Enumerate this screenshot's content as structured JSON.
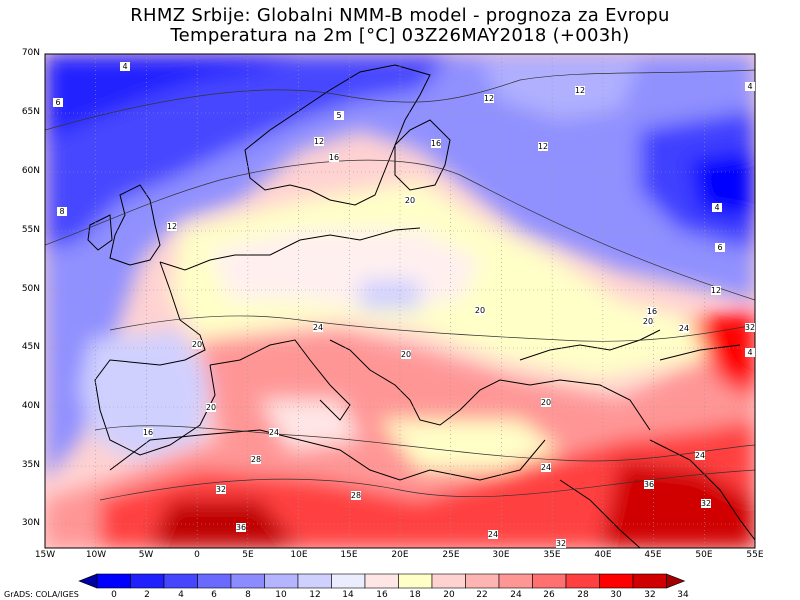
{
  "title_line1": "RHMZ Srbije: Globalni NMM-B model - prognoza za Evropu",
  "title_line2": "Temperatura na 2m [°C] 03Z26MAY2018 (+003h)",
  "lat_labels": [
    "70N",
    "65N",
    "60N",
    "55N",
    "50N",
    "45N",
    "40N",
    "35N",
    "30N"
  ],
  "lon_labels": [
    "15W",
    "10W",
    "5W",
    "0",
    "5E",
    "10E",
    "15E",
    "20E",
    "25E",
    "30E",
    "35E",
    "40E",
    "45E",
    "50E",
    "55E"
  ],
  "credit": "GrADS: COLA/IGES",
  "colorbar": {
    "labels": [
      "0",
      "2",
      "4",
      "6",
      "8",
      "10",
      "12",
      "14",
      "16",
      "18",
      "20",
      "22",
      "24",
      "26",
      "28",
      "30",
      "32",
      "34"
    ],
    "colors": [
      "#0000a0",
      "#0000ff",
      "#2020ff",
      "#4646ff",
      "#6a6aff",
      "#8c8cff",
      "#b4b4ff",
      "#d0d0ff",
      "#ececff",
      "#ffe6e6",
      "#ffffc8",
      "#ffd2d2",
      "#ffb4b4",
      "#ff9696",
      "#ff7070",
      "#ff4040",
      "#ff0000",
      "#d00000",
      "#a00000"
    ]
  },
  "contour_labels": [
    "4",
    "12",
    "12",
    "4",
    "6",
    "5",
    "12",
    "16",
    "12",
    "16",
    "8",
    "12",
    "20",
    "4",
    "6",
    "12",
    "16",
    "20",
    "24",
    "20",
    "20",
    "20",
    "20",
    "16",
    "20",
    "24",
    "24",
    "28",
    "24",
    "28",
    "32",
    "36",
    "32",
    "24",
    "32",
    "36",
    "24",
    "32",
    "4"
  ]
}
